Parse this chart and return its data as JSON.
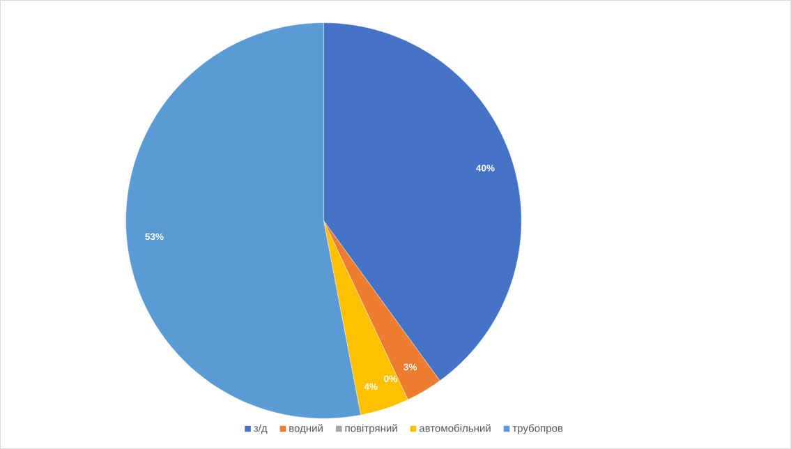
{
  "chart_data": {
    "type": "pie",
    "categories": [
      "з/д",
      "водний",
      "повітряний",
      "автомобільний",
      "трубопров"
    ],
    "values": [
      40,
      3,
      0,
      4,
      53
    ],
    "value_labels": [
      "40%",
      "3%",
      "0%",
      "4%",
      "53%"
    ],
    "colors": [
      "#4472c4",
      "#ed7d31",
      "#a5a5a5",
      "#ffc000",
      "#5b9bd5"
    ],
    "legend": "bottom"
  }
}
